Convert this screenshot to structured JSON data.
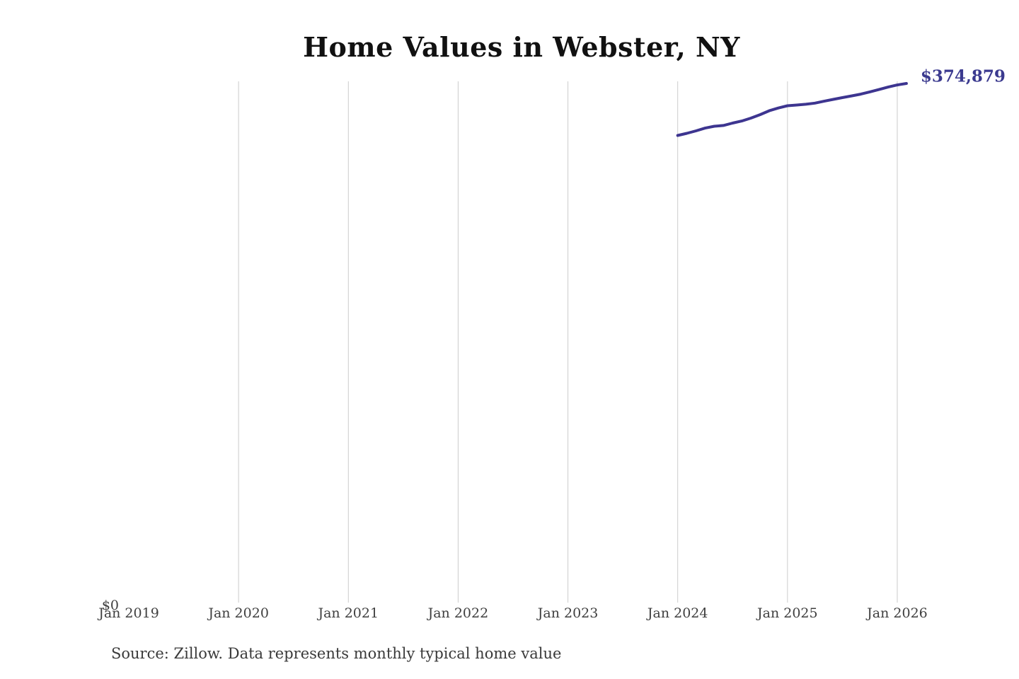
{
  "chart": {
    "title": "Home Values in Webster, NY",
    "source_note": "Source: Zillow. Data represents monthly typical home value",
    "colors": {
      "line": "#3d3590",
      "end_label": "#3b3a8f",
      "gridline": "#cccccc",
      "axis_text": "#3f3f3f",
      "title_text": "#111111",
      "source_text": "#3a3a3a",
      "background": "#ffffff"
    }
  },
  "chart_data": {
    "type": "line",
    "title": "Home Values in Webster, NY",
    "xlabel": "",
    "ylabel": "",
    "grid": "vertical-gridlines-only",
    "legend_position": "none",
    "x_axis": {
      "tick_labels": [
        "Jan 2019",
        "Jan 2020",
        "Jan 2021",
        "Jan 2022",
        "Jan 2023",
        "Jan 2024",
        "Jan 2025",
        "Jan 2026"
      ],
      "gridlines": [
        false,
        true,
        true,
        true,
        true,
        true,
        true,
        true
      ],
      "first_tick_year": 2019
    },
    "y_axis": {
      "tick_labels": [
        "$0"
      ],
      "min": 0,
      "implied_max": 376000
    },
    "series": [
      {
        "name": "Typical home value",
        "x": [
          "2024-01",
          "2024-02",
          "2024-03",
          "2024-04",
          "2024-05",
          "2024-06",
          "2024-07",
          "2024-08",
          "2024-09",
          "2024-10",
          "2024-11",
          "2024-12",
          "2025-01",
          "2025-02",
          "2025-03",
          "2025-04",
          "2025-05",
          "2025-06",
          "2025-07",
          "2025-08",
          "2025-09",
          "2025-10",
          "2025-11",
          "2025-12",
          "2026-01",
          "2026-02"
        ],
        "values": [
          337400,
          338900,
          340700,
          342700,
          344000,
          344600,
          346300,
          347800,
          349900,
          352400,
          355200,
          357200,
          358800,
          359300,
          359900,
          360700,
          362100,
          363400,
          364700,
          365900,
          367200,
          368800,
          370500,
          372300,
          373800,
          374879
        ]
      }
    ],
    "end_annotation": {
      "text": "$374,879",
      "value": 374879
    }
  }
}
